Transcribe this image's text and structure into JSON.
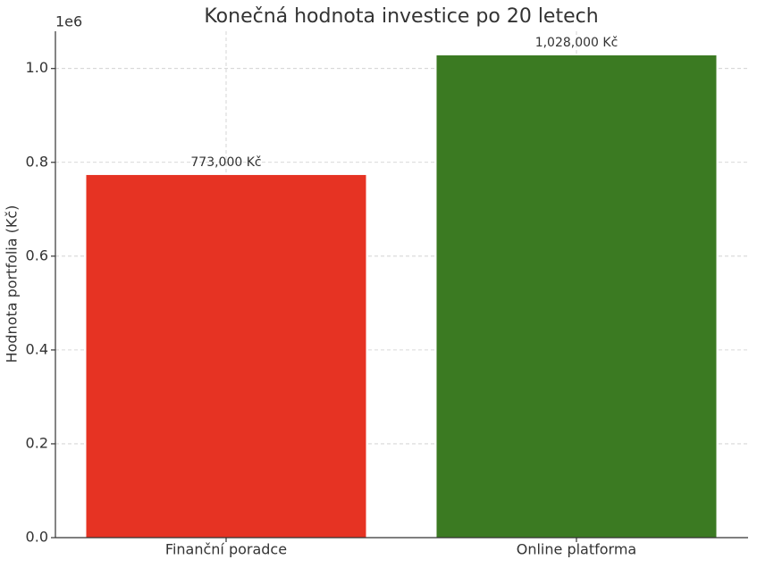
{
  "chart_data": {
    "type": "bar",
    "title": "Konečná hodnota investice po 20 letech",
    "y_label": "Hodnota portfolia (Kč)",
    "y_offset_label": "1e6",
    "categories": [
      "Finanční poradce",
      "Online platforma"
    ],
    "values": [
      773000,
      1028000
    ],
    "value_labels": [
      "773,000 Kč",
      "1,028,000 Kč"
    ],
    "colors": [
      "#e63323",
      "#3b7a22"
    ],
    "ylim": [
      0,
      1079400
    ],
    "yticks": [
      {
        "value": 0,
        "label": "0.0"
      },
      {
        "value": 200000,
        "label": "0.2"
      },
      {
        "value": 400000,
        "label": "0.4"
      },
      {
        "value": 600000,
        "label": "0.6"
      },
      {
        "value": 800000,
        "label": "0.8"
      },
      {
        "value": 1000000,
        "label": "1.0"
      }
    ],
    "grid": true
  }
}
